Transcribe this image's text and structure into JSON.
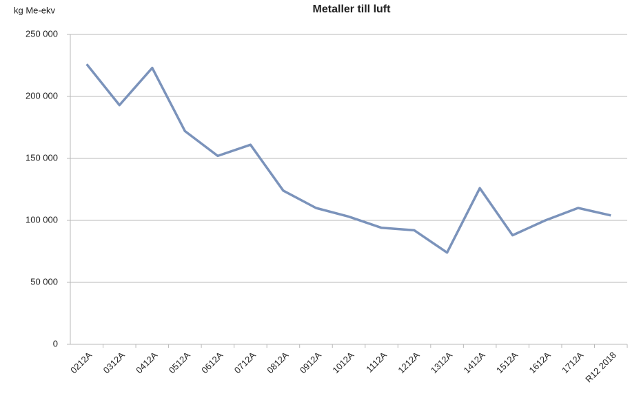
{
  "chart_data": {
    "type": "line",
    "title": "Metaller till luft",
    "y_label": "kg Me-ekv",
    "categories": [
      "0212A",
      "0312A",
      "0412A",
      "0512A",
      "0612A",
      "0712A",
      "0812A",
      "0912A",
      "1012A",
      "1112A",
      "1212A",
      "1312A",
      "1412A",
      "1512A",
      "1612A",
      "1712A",
      "R12 2018"
    ],
    "series": [
      {
        "name": "Metaller till luft",
        "color": "#7b93bb",
        "values": [
          226000,
          193000,
          223000,
          172000,
          152000,
          161000,
          124000,
          110000,
          103000,
          94000,
          92000,
          74000,
          126000,
          88000,
          100000,
          110000,
          104000
        ]
      }
    ],
    "ylim": [
      0,
      250000
    ],
    "yticks": [
      0,
      {
        "value": 50000,
        "label": "50 000"
      },
      {
        "value": 100000,
        "label": "100 000"
      },
      {
        "value": 150000,
        "label": "150 000"
      },
      {
        "value": 200000,
        "label": "200 000"
      },
      {
        "value": 250000,
        "label": "250 000"
      }
    ],
    "grid": true
  }
}
